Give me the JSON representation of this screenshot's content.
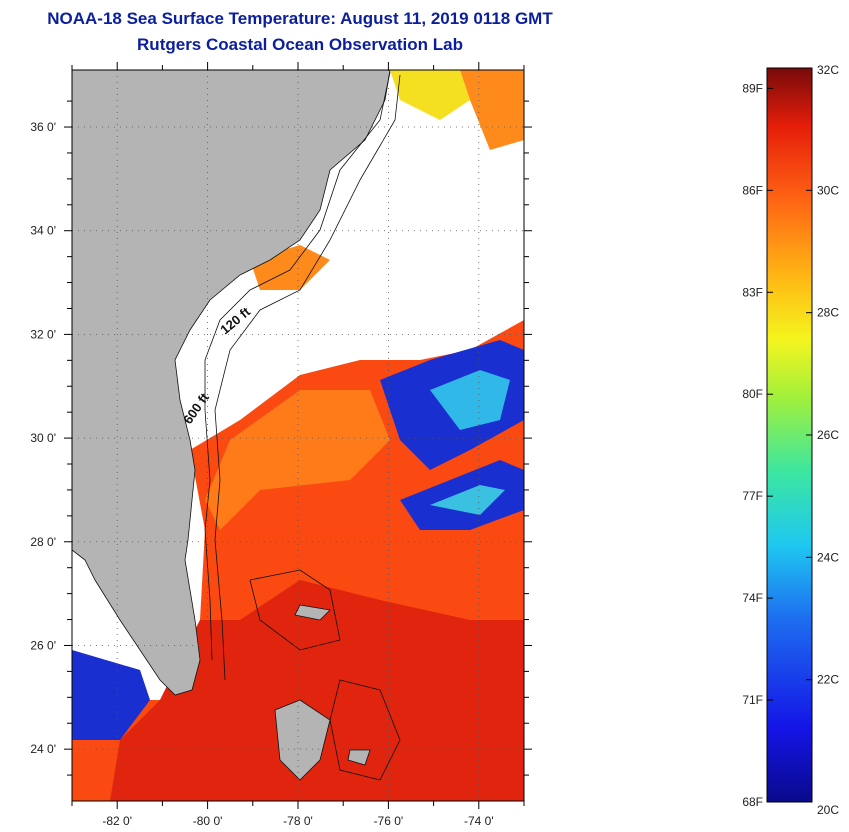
{
  "title": "NOAA-18 Sea Surface Temperature:  August 11, 2019 0118 GMT",
  "subtitle": "Rutgers Coastal Ocean Observation Lab",
  "map": {
    "lat_labels": [
      "36 0'",
      "34 0'",
      "32 0'",
      "30 0'",
      "28 0'",
      "26 0'",
      "24 0'"
    ],
    "lat_values": [
      36,
      34,
      32,
      30,
      28,
      26,
      24
    ],
    "lon_labels": [
      "-82 0'",
      "-80 0'",
      "-78 0'",
      "-76 0'",
      "-74 0'"
    ],
    "lon_values": [
      -82,
      -80,
      -78,
      -76,
      -74
    ],
    "lat_range": [
      23,
      37.1
    ],
    "lon_range": [
      -83,
      -73
    ],
    "contour_labels": [
      "120 ft",
      "600 ft"
    ],
    "colors": {
      "land": "#b4b4b4",
      "cloud": "#ffffff",
      "warm_water": "#ff4c10"
    }
  },
  "colorbar": {
    "left_labels": [
      "89F",
      "86F",
      "83F",
      "80F",
      "77F",
      "74F",
      "71F",
      "68F"
    ],
    "right_labels": [
      "32C",
      "30C",
      "28C",
      "26C",
      "24C",
      "22C",
      "20C"
    ],
    "range_c": [
      20,
      32
    ]
  }
}
